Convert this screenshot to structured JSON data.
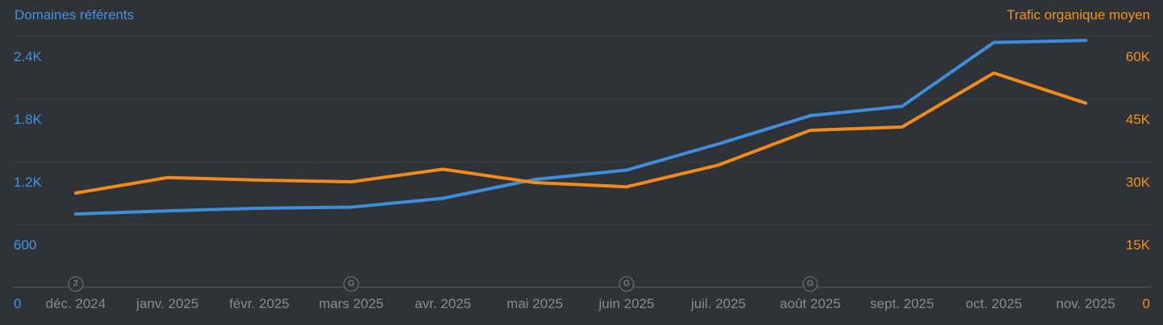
{
  "header": {
    "left_title": "Domaines référents",
    "right_title": "Trafic organique moyen"
  },
  "colors": {
    "background": "#2f3338",
    "blue_line": "#3f8edb",
    "blue_label": "#4493e0",
    "orange_line": "#f28b1c",
    "orange_label": "#f0931f",
    "x_label": "#888b8f",
    "grid_line": "#3e4146",
    "axis_line": "#4d5055",
    "badge": "#75787c"
  },
  "chart_data": {
    "type": "line",
    "title": "",
    "x_categories": [
      "déc. 2024",
      "janv. 2025",
      "févr. 2025",
      "mars 2025",
      "avr. 2025",
      "mai 2025",
      "juin 2025",
      "juil. 2025",
      "août 2025",
      "sept. 2025",
      "oct. 2025",
      "nov. 2025"
    ],
    "series": [
      {
        "name": "Domaines référents",
        "axis": "left",
        "color": "#3f8edb",
        "values": [
          700,
          730,
          755,
          765,
          850,
          1030,
          1120,
          1370,
          1640,
          1730,
          2340,
          2360
        ]
      },
      {
        "name": "Trafic organique moyen",
        "axis": "right",
        "color": "#f28b1c",
        "values": [
          22500,
          26200,
          25600,
          25200,
          28200,
          25000,
          24000,
          29200,
          37500,
          38300,
          51200,
          44000
        ]
      }
    ],
    "left_axis": {
      "ticks": [
        "2.4K",
        "1.8K",
        "1.2K",
        "600"
      ],
      "bottom_tick": "0",
      "range": [
        0,
        2400
      ]
    },
    "right_axis": {
      "ticks": [
        "60K",
        "45K",
        "30K",
        "15K"
      ],
      "bottom_tick": "0",
      "range": [
        0,
        60000
      ]
    },
    "markers": [
      {
        "x_label": "déc. 2024",
        "badge": "2"
      },
      {
        "x_label": "mars 2025",
        "badge": "G"
      },
      {
        "x_label": "juin 2025",
        "badge": "G"
      },
      {
        "x_label": "août 2025",
        "badge": "G"
      }
    ],
    "grid": true,
    "legend_position": "top-corners"
  }
}
